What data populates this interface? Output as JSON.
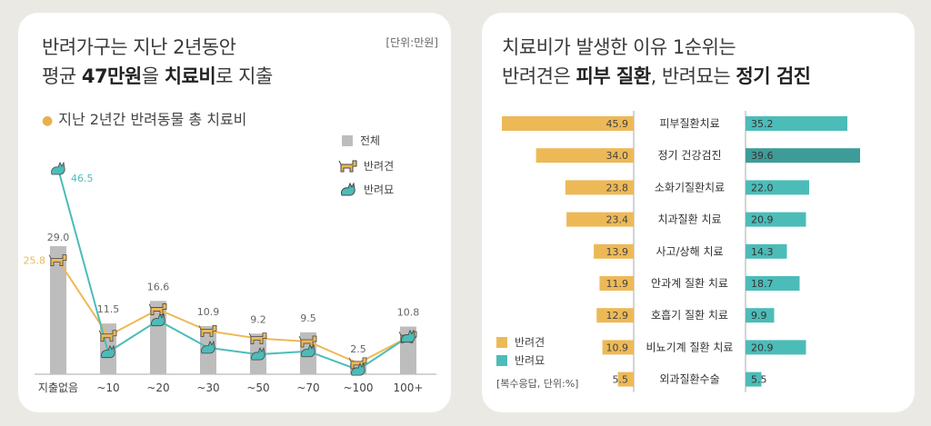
{
  "colors": {
    "total": "#bdbdbd",
    "dog": "#edb957",
    "cat": "#4cbcb8",
    "cat_dark": "#3e9c98"
  },
  "left": {
    "title_line1": "반려가구는 지난 2년동안",
    "title_line2_a": "평균 ",
    "title_line2_b": "47만원",
    "title_line2_c": "을 ",
    "title_line2_d": "치료비",
    "title_line2_e": "로 지출",
    "unit": "[단위:만원]",
    "subtitle": "지난 2년간 반려동물 총 치료비",
    "legend": {
      "total": "전체",
      "dog": "반려견",
      "cat": "반려묘"
    }
  },
  "right": {
    "title_line1": "치료비가 발생한 이유 1순위는",
    "title_line2_a": "반려견은 ",
    "title_line2_b": "피부 질환",
    "title_line2_c": ", 반려묘는 ",
    "title_line2_d": "정기 검진",
    "legend": {
      "dog": "반려견",
      "cat": "반려묘"
    },
    "note": "[복수응답, 단위:%]"
  },
  "chart_data": [
    {
      "type": "bar",
      "categories": [
        "지출없음",
        "~10",
        "~20",
        "~30",
        "~50",
        "~70",
        "~100",
        "100+"
      ],
      "series": [
        {
          "name": "전체",
          "type": "bar",
          "values": [
            29.0,
            11.5,
            16.6,
            10.9,
            9.2,
            9.5,
            2.5,
            10.8
          ]
        },
        {
          "name": "반려견",
          "type": "line",
          "values": [
            25.8,
            8.7,
            14.7,
            9.8,
            8.1,
            7.4,
            2.5,
            8.4
          ]
        },
        {
          "name": "반려묘",
          "type": "line",
          "values": [
            46.5,
            5.0,
            12.2,
            6.0,
            4.5,
            5.2,
            1.0,
            8.5
          ]
        }
      ],
      "value_labels": [
        "29.0",
        "11.5",
        "16.6",
        "10.9",
        "9.2",
        "9.5",
        "2.5",
        "10.8"
      ],
      "extra_labels": {
        "dog_first": "25.8",
        "cat_first": "46.5"
      },
      "ylim": [
        0,
        50
      ]
    },
    {
      "type": "bar",
      "orientation": "horizontal-butterfly",
      "categories": [
        "피부질환치료",
        "정기 건강검진",
        "소화기질환치료",
        "치과질환 치료",
        "사고/상해 치료",
        "안과계 질환 치료",
        "호흡기 질환 치료",
        "비뇨기계 질환 치료",
        "외과질환수술"
      ],
      "series": [
        {
          "name": "반려견",
          "values": [
            45.9,
            34.0,
            23.8,
            23.4,
            13.9,
            11.9,
            12.9,
            10.9,
            5.5
          ],
          "labels": [
            "45.9",
            "34.0",
            "23.8",
            "23.4",
            "13.9",
            "11.9",
            "12.9",
            "10.9",
            "5.5"
          ]
        },
        {
          "name": "반려묘",
          "values": [
            35.2,
            39.6,
            22.0,
            20.9,
            14.3,
            18.7,
            9.9,
            20.9,
            5.5
          ],
          "labels": [
            "35.2",
            "39.6",
            "22.0",
            "20.9",
            "14.3",
            "18.7",
            "9.9",
            "20.9",
            "5.5"
          ]
        }
      ],
      "xlim": [
        0,
        50
      ]
    }
  ]
}
